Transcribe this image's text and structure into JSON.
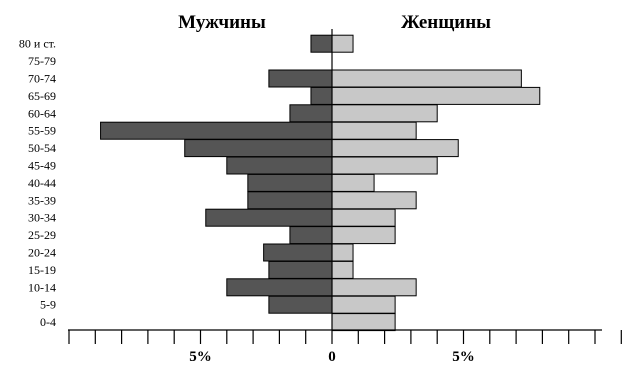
{
  "chart_data": {
    "type": "bar",
    "orientation": "horizontal",
    "subtype": "population-pyramid",
    "headers": {
      "male": "Мужчины",
      "female": "Женщины"
    },
    "categories": [
      "80 и ст.",
      "75-79",
      "70-74",
      "65-69",
      "60-64",
      "55-59",
      "50-54",
      "45-49",
      "40-44",
      "35-39",
      "30-34",
      "25-29",
      "20-24",
      "15-19",
      "10-14",
      "5-9",
      "0-4"
    ],
    "series": [
      {
        "name": "Мужчины",
        "color": "#555555",
        "values": [
          0.8,
          0,
          2.4,
          0.8,
          1.6,
          8.8,
          5.6,
          4.0,
          3.2,
          3.2,
          4.8,
          1.6,
          2.6,
          2.4,
          4.0,
          2.4,
          0
        ]
      },
      {
        "name": "Женщины",
        "color": "#c8c8c8",
        "values": [
          0.8,
          0,
          7.2,
          7.9,
          4.0,
          3.2,
          4.8,
          4.0,
          1.6,
          3.2,
          2.4,
          2.4,
          0.8,
          0.8,
          3.2,
          2.4,
          2.4
        ]
      }
    ],
    "xaxis": {
      "ticks": [
        -10,
        -9,
        -8,
        -7,
        -6,
        -5,
        -4,
        -3,
        -2,
        -1,
        0,
        1,
        2,
        3,
        4,
        5,
        6,
        7,
        8,
        9,
        10,
        11
      ],
      "labels": [
        {
          "value": -5,
          "text": "5%"
        },
        {
          "value": 0,
          "text": "0"
        },
        {
          "value": 5,
          "text": "5%"
        }
      ]
    },
    "unit": "%",
    "grid": false,
    "legend": "none"
  }
}
